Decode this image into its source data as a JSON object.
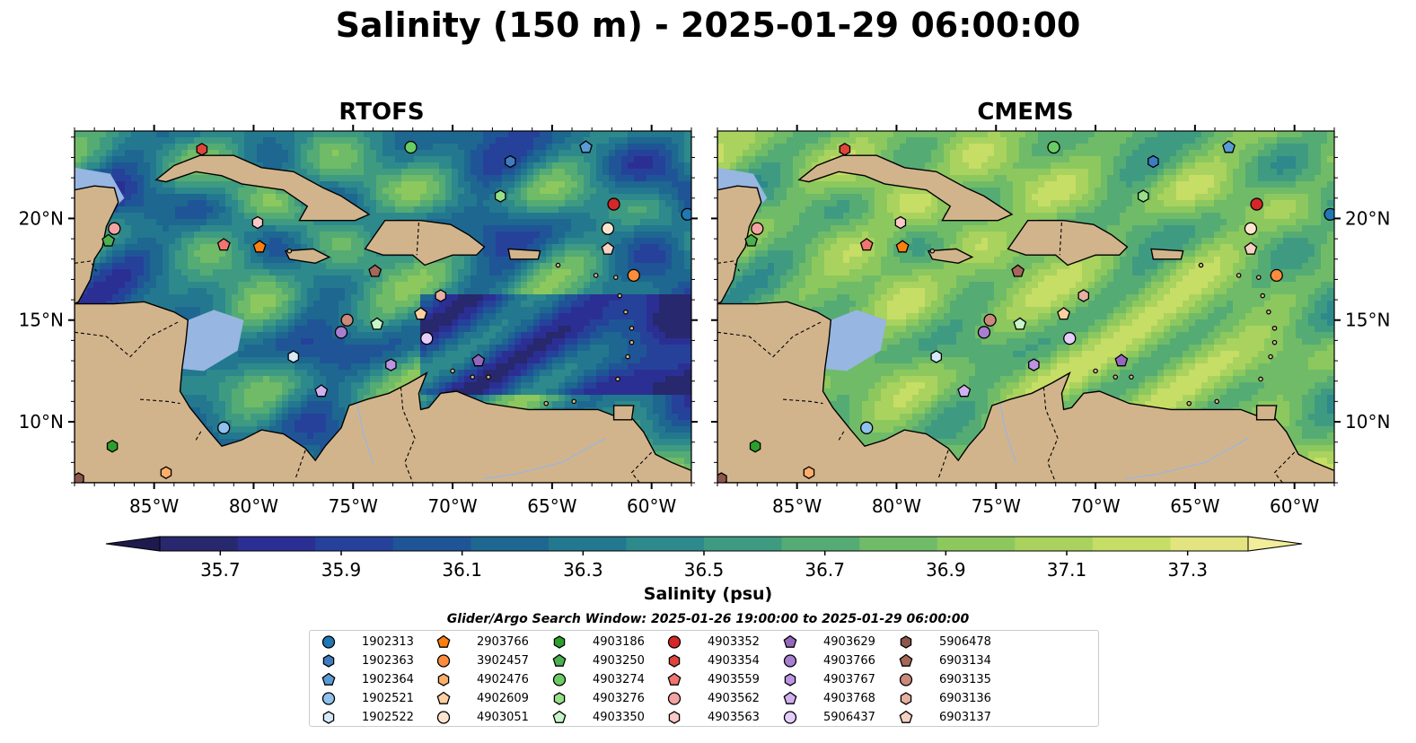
{
  "title": "Salinity (150 m) - 2025-01-29 06:00:00",
  "panels": [
    {
      "title": "RTOFS",
      "model": "rtofs"
    },
    {
      "title": "CMEMS",
      "model": "cmems"
    }
  ],
  "map_extent": {
    "lon": [
      -89,
      -58
    ],
    "lat": [
      7,
      24.3
    ]
  },
  "lon_ticks": [
    {
      "value": -85,
      "label": "85°W"
    },
    {
      "value": -80,
      "label": "80°W"
    },
    {
      "value": -75,
      "label": "75°W"
    },
    {
      "value": -70,
      "label": "70°W"
    },
    {
      "value": -65,
      "label": "65°W"
    },
    {
      "value": -60,
      "label": "60°W"
    }
  ],
  "lat_ticks": [
    {
      "value": 10,
      "label": "10°N"
    },
    {
      "value": 15,
      "label": "15°N"
    },
    {
      "value": 20,
      "label": "20°N"
    }
  ],
  "colorbar": {
    "label": "Salinity (psu)",
    "min": 35.6,
    "max": 37.4,
    "step": 0.1,
    "extend": "both",
    "tick_labels": [
      "35.7",
      "35.9",
      "36.1",
      "36.3",
      "36.5",
      "36.7",
      "36.9",
      "37.1",
      "37.3"
    ],
    "colors": [
      "#27286d",
      "#2b2f93",
      "#26419a",
      "#1f5596",
      "#1d6791",
      "#23788f",
      "#2d898b",
      "#3e9b82",
      "#55ab74",
      "#70bb67",
      "#8cc85e",
      "#a9d35e",
      "#c6dd66",
      "#e2e57f"
    ],
    "under_color": "#1f1a4e",
    "over_color": "#f1ed9a"
  },
  "colors": {
    "land": "#d2b48c",
    "ocean_mask": "#97b6e1",
    "border": "#000000"
  },
  "legend": {
    "title": "Glider/Argo Search Window: 2025-01-26 19:00:00 to 2025-01-29 06:00:00",
    "floats": [
      {
        "id": "1902313",
        "color": "#1f77b4",
        "marker": "circle",
        "lon": -58.2,
        "lat": 20.2
      },
      {
        "id": "1902363",
        "color": "#3f7cbf",
        "marker": "hexagon",
        "lon": -67.1,
        "lat": 22.8
      },
      {
        "id": "1902364",
        "color": "#5b9bd5",
        "marker": "pentagon",
        "lon": -63.3,
        "lat": 23.5
      },
      {
        "id": "1902521",
        "color": "#8fc1ec",
        "marker": "circle",
        "lon": -81.5,
        "lat": 9.7
      },
      {
        "id": "1902522",
        "color": "#d6e9f8",
        "marker": "hexagon",
        "lon": -78.0,
        "lat": 13.2
      },
      {
        "id": "2903766",
        "color": "#ff7f0e",
        "marker": "pentagon",
        "lon": -79.7,
        "lat": 18.6
      },
      {
        "id": "3902457",
        "color": "#fd8d3c",
        "marker": "circle",
        "lon": -60.9,
        "lat": 17.2
      },
      {
        "id": "4902476",
        "color": "#fdae6b",
        "marker": "hexagon",
        "lon": -84.4,
        "lat": 7.5
      },
      {
        "id": "4902609",
        "color": "#fdd0a2",
        "marker": "pentagon",
        "lon": -71.6,
        "lat": 15.3
      },
      {
        "id": "4903051",
        "color": "#fee6ce",
        "marker": "circle",
        "lon": -62.2,
        "lat": 19.5
      },
      {
        "id": "4903186",
        "color": "#2ca02c",
        "marker": "hexagon",
        "lon": -87.1,
        "lat": 8.8
      },
      {
        "id": "4903250",
        "color": "#4caf50",
        "marker": "pentagon",
        "lon": -87.3,
        "lat": 18.9
      },
      {
        "id": "4903274",
        "color": "#6acc64",
        "marker": "circle",
        "lon": -72.1,
        "lat": 23.5
      },
      {
        "id": "4903276",
        "color": "#98df8a",
        "marker": "hexagon",
        "lon": -67.6,
        "lat": 21.1
      },
      {
        "id": "4903350",
        "color": "#c7f5c7",
        "marker": "pentagon",
        "lon": -73.8,
        "lat": 14.8
      },
      {
        "id": "4903352",
        "color": "#d62728",
        "marker": "circle",
        "lon": -61.9,
        "lat": 20.7
      },
      {
        "id": "4903354",
        "color": "#e0453c",
        "marker": "hexagon",
        "lon": -82.6,
        "lat": 23.4
      },
      {
        "id": "4903559",
        "color": "#f07470",
        "marker": "pentagon",
        "lon": -81.5,
        "lat": 18.7
      },
      {
        "id": "4903562",
        "color": "#f4a3a3",
        "marker": "circle",
        "lon": -87.0,
        "lat": 19.5
      },
      {
        "id": "4903563",
        "color": "#fbc7c7",
        "marker": "hexagon",
        "lon": -79.8,
        "lat": 19.8
      },
      {
        "id": "4903629",
        "color": "#9467bd",
        "marker": "pentagon",
        "lon": -68.7,
        "lat": 13.0
      },
      {
        "id": "4903766",
        "color": "#a77fd0",
        "marker": "circle",
        "lon": -75.6,
        "lat": 14.4
      },
      {
        "id": "4903767",
        "color": "#bd94e4",
        "marker": "hexagon",
        "lon": -73.1,
        "lat": 12.8
      },
      {
        "id": "4903768",
        "color": "#d0b0f0",
        "marker": "pentagon",
        "lon": -76.6,
        "lat": 11.5
      },
      {
        "id": "5906437",
        "color": "#e6ccfb",
        "marker": "circle",
        "lon": -71.3,
        "lat": 14.1
      },
      {
        "id": "5906478",
        "color": "#8c564b",
        "marker": "hexagon",
        "lon": -88.8,
        "lat": 7.2
      },
      {
        "id": "6903134",
        "color": "#a5675a",
        "marker": "pentagon",
        "lon": -73.9,
        "lat": 17.4
      },
      {
        "id": "6903135",
        "color": "#c9897b",
        "marker": "circle",
        "lon": -75.3,
        "lat": 15.0
      },
      {
        "id": "6903136",
        "color": "#e7b0a1",
        "marker": "hexagon",
        "lon": -70.6,
        "lat": 16.2
      },
      {
        "id": "6903137",
        "color": "#f6d1c3",
        "marker": "pentagon",
        "lon": -62.2,
        "lat": 18.5
      }
    ]
  }
}
